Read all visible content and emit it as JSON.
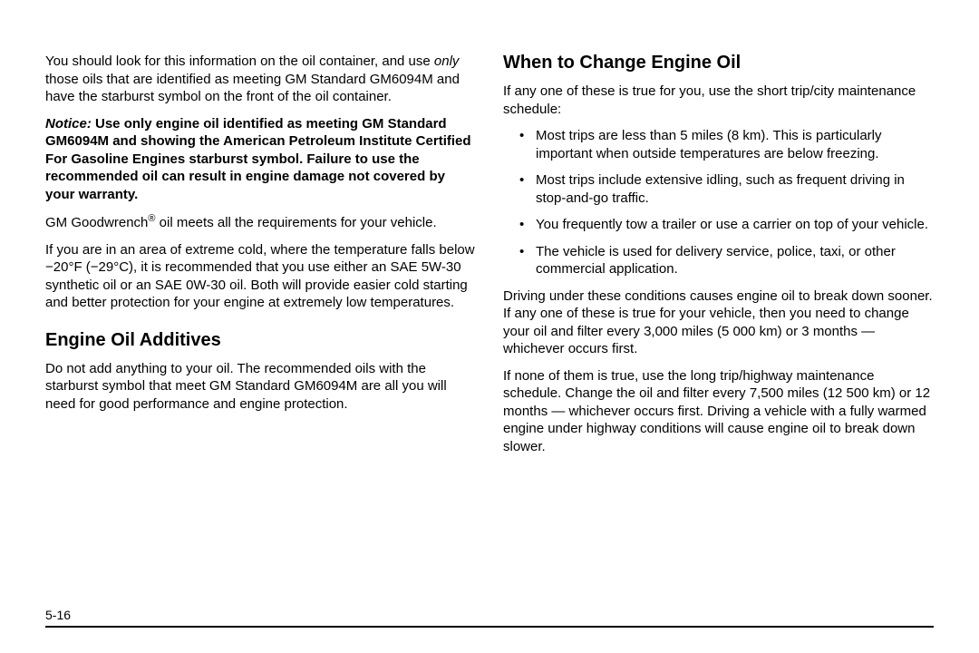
{
  "left": {
    "p1_a": "You should look for this information on the oil container, and use ",
    "p1_i": "only",
    "p1_b": " those oils that are identified as meeting GM Standard GM6094M and have the starburst symbol on the front of the oil container.",
    "notice_label": "Notice:",
    "notice_body": "   Use only engine oil identified as meeting GM Standard GM6094M and showing the American Petroleum Institute Certified For Gasoline Engines starburst symbol. Failure to use the recommended oil can result in engine damage not covered by your warranty.",
    "p3_a": "GM Goodwrench",
    "p3_reg": "®",
    "p3_b": " oil meets all the requirements for your vehicle.",
    "p4": "If you are in an area of extreme cold, where the temperature falls below −20°F (−29°C), it is recommended that you use either an SAE 5W-30 synthetic oil or an SAE 0W-30 oil. Both will provide easier cold starting and better protection for your engine at extremely low temperatures.",
    "h_additives": "Engine Oil Additives",
    "p5": "Do not add anything to your oil. The recommended oils with the starburst symbol that meet GM Standard GM6094M are all you will need for good performance and engine protection."
  },
  "right": {
    "h_when": "When to Change Engine Oil",
    "p1": "If any one of these is true for you, use the short trip/city maintenance schedule:",
    "b1": "Most trips are less than 5 miles (8 km). This is particularly important when outside temperatures are below freezing.",
    "b2": "Most trips include extensive idling, such as frequent driving in stop-and-go traffic.",
    "b3": "You frequently tow a trailer or use a carrier on top of your vehicle.",
    "b4": "The vehicle is used for delivery service, police, taxi, or other commercial application.",
    "p2": "Driving under these conditions causes engine oil to break down sooner. If any one of these is true for your vehicle, then you need to change your oil and filter every 3,000 miles (5 000 km) or 3 months — whichever occurs first.",
    "p3": "If none of them is true, use the long trip/highway maintenance schedule. Change the oil and filter every 7,500 miles (12 500 km) or 12 months — whichever occurs first. Driving a vehicle with a fully warmed engine under highway conditions will cause engine oil to break down slower."
  },
  "page_number": "5-16"
}
